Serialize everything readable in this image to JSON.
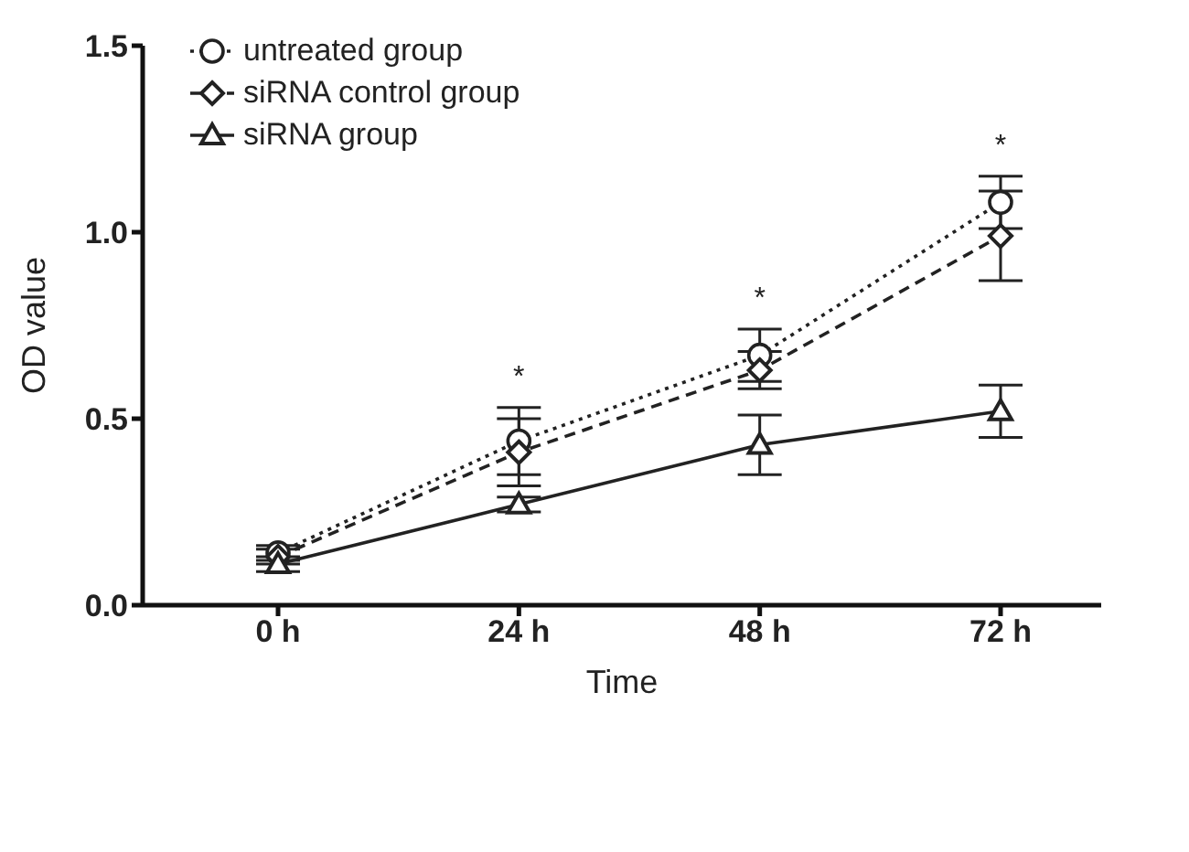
{
  "chart_data": {
    "type": "line",
    "xlabel": "Time",
    "ylabel": "OD value",
    "categories": [
      "0 h",
      "24 h",
      "48 h",
      "72 h"
    ],
    "series": [
      {
        "name": "untreated group",
        "color": "#222222",
        "values": [
          0.14,
          0.44,
          0.67,
          1.08
        ],
        "errors": [
          0.02,
          0.09,
          0.07,
          0.07
        ],
        "marker": "circle",
        "line_style": "dotted"
      },
      {
        "name": "siRNA control group",
        "color": "#222222",
        "values": [
          0.13,
          0.41,
          0.63,
          0.99
        ],
        "errors": [
          0.02,
          0.09,
          0.05,
          0.12
        ],
        "marker": "diamond",
        "line_style": "dashed"
      },
      {
        "name": "siRNA group",
        "color": "#222222",
        "values": [
          0.11,
          0.27,
          0.43,
          0.52
        ],
        "errors": [
          0.02,
          0.02,
          0.08,
          0.07
        ],
        "marker": "triangle",
        "line_style": "solid"
      }
    ],
    "ylim": [
      0,
      1.5
    ],
    "yticks": [
      {
        "value": 0,
        "label": "0.0"
      },
      {
        "value": 0.5,
        "label": "0.5"
      },
      {
        "value": 1,
        "label": "1.0"
      },
      {
        "value": 1.5,
        "label": "1.5"
      }
    ],
    "grid": false,
    "legend": "top left",
    "annotations": [
      "*",
      "*",
      "*"
    ]
  }
}
